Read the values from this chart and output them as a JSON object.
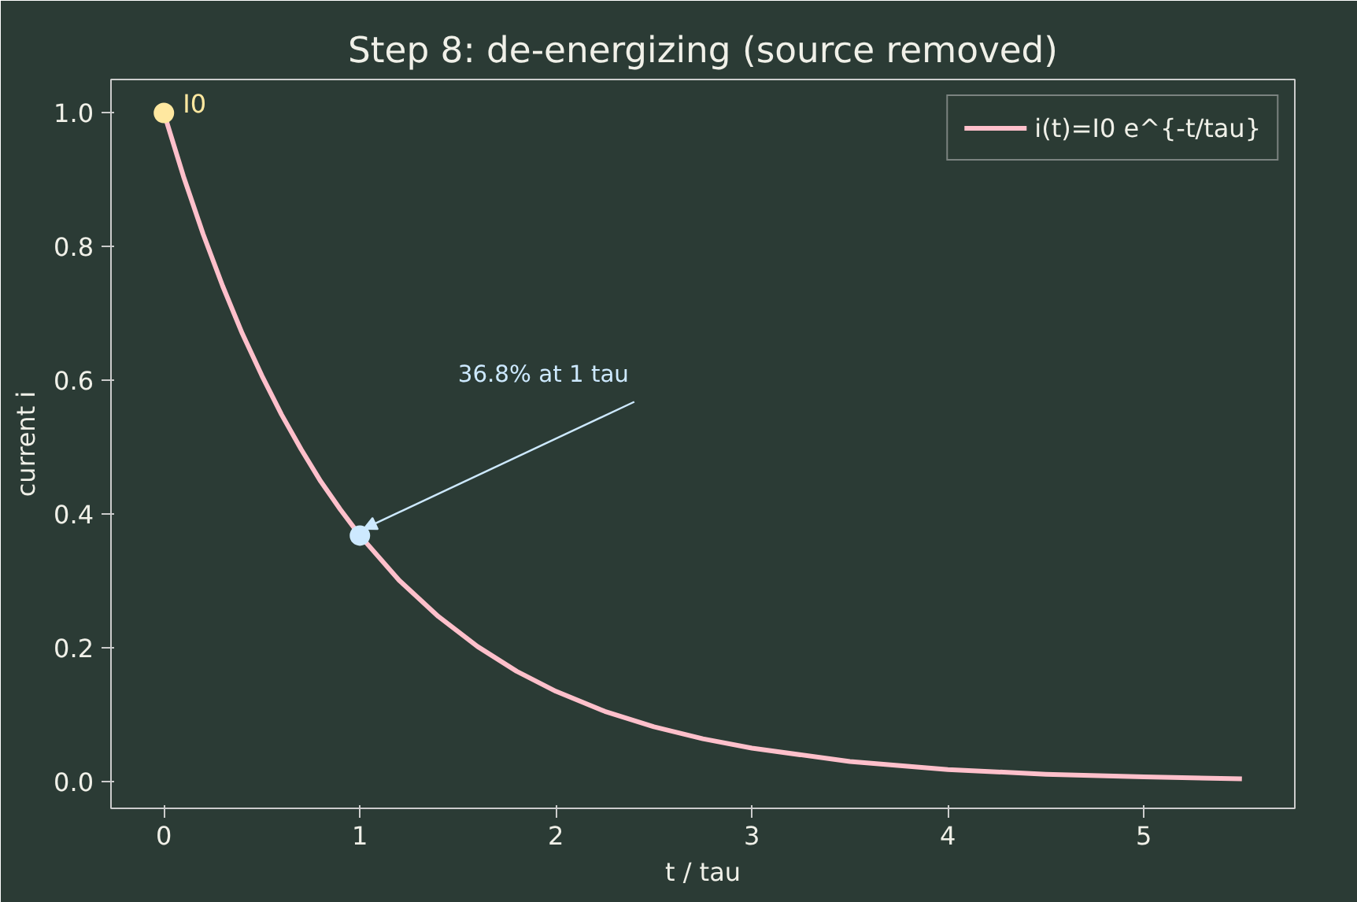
{
  "chart_data": {
    "type": "line",
    "title": "Step 8: de-energizing (source removed)",
    "xlabel": "t / tau",
    "ylabel": "current i",
    "xlim": [
      -0.27,
      5.77
    ],
    "ylim": [
      -0.04,
      1.05
    ],
    "xticks": [
      0,
      1,
      2,
      3,
      4,
      5
    ],
    "yticks": [
      {
        "value": 0,
        "label": "0.0"
      },
      0.2,
      0.4,
      0.6,
      0.8,
      {
        "value": 1,
        "label": "1.0"
      }
    ],
    "grid": false,
    "legend": "top right",
    "series": [
      {
        "name": "i(t)=I0 e^{-t/tau}",
        "color": "#ffc0cb",
        "x": [
          0,
          0.1,
          0.2,
          0.3,
          0.4,
          0.5,
          0.6,
          0.7,
          0.8,
          0.9,
          1,
          1.2,
          1.4,
          1.6,
          1.8,
          2,
          2.25,
          2.5,
          2.75,
          3,
          3.5,
          4,
          4.5,
          5,
          5.5
        ],
        "values": [
          1,
          0.905,
          0.819,
          0.741,
          0.67,
          0.607,
          0.549,
          0.497,
          0.449,
          0.407,
          0.368,
          0.301,
          0.247,
          0.202,
          0.165,
          0.135,
          0.105,
          0.082,
          0.064,
          0.05,
          0.03,
          0.018,
          0.011,
          0.007,
          0.004
        ]
      },
      {
        "type": "scatter",
        "color": "#ffe8a0",
        "x": [
          0
        ],
        "values": [
          1
        ],
        "marker": "circle"
      },
      {
        "type": "scatter",
        "color": "#cde9ff",
        "x": [
          1
        ],
        "values": [
          0.368
        ],
        "marker": "circle"
      }
    ],
    "annotations": [
      {
        "text": "I0",
        "x": 0,
        "y": 1
      },
      {
        "text": "36.8% at 1 tau",
        "x": 1,
        "y": 0.368
      }
    ]
  }
}
